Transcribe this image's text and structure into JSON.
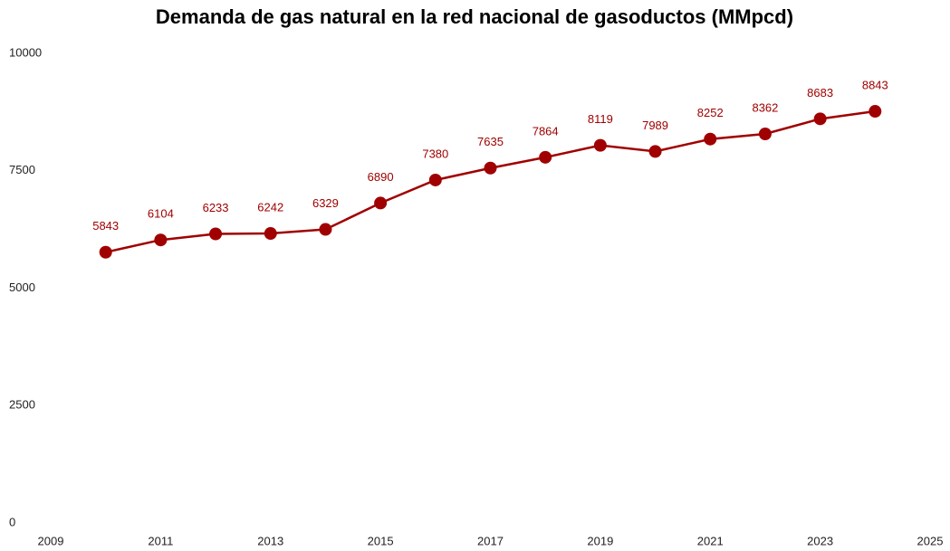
{
  "chart_data": {
    "type": "line",
    "title": "Demanda de gas natural en la red nacional de gasoductos (MMpcd)",
    "x": [
      2010,
      2011,
      2012,
      2013,
      2014,
      2015,
      2016,
      2017,
      2018,
      2019,
      2020,
      2021,
      2022,
      2023,
      2024
    ],
    "series": [
      {
        "name": "Demanda",
        "color": "#a00000",
        "values": [
          5843,
          6104,
          6233,
          6242,
          6329,
          6890,
          7380,
          7635,
          7864,
          8119,
          7989,
          8252,
          8362,
          8683,
          8843
        ]
      }
    ],
    "xlim": [
      2009,
      2025
    ],
    "xticks": [
      2009,
      2011,
      2013,
      2015,
      2017,
      2019,
      2021,
      2023,
      2025
    ],
    "ylim": [
      0,
      10000
    ],
    "yticks": [
      0,
      2500,
      5000,
      7500,
      10000
    ],
    "grid": false
  }
}
